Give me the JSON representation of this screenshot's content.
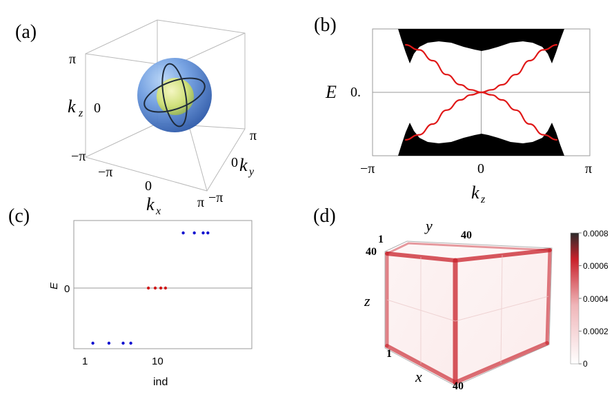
{
  "panels": {
    "a": {
      "label": "(a)",
      "axes": {
        "kz_label": "k",
        "kz_sub": "z",
        "ky_label": "k",
        "ky_sub": "y",
        "kx_label": "k",
        "kx_sub": "x",
        "kz_ticks": [
          "π",
          "0",
          "−π"
        ],
        "kx_ticks": [
          "−π",
          "0",
          "π"
        ],
        "ky_ticks": [
          "π",
          "0",
          "−π"
        ]
      },
      "colors": {
        "outer_sphere": "#4a78c8",
        "inner_sphere": "#c9e06a",
        "rings": "#1e2a3a"
      }
    },
    "b": {
      "label": "(b)",
      "ylabel": "E",
      "xlabel": "k",
      "xlabel_sub": "z",
      "y_tick": "0.",
      "x_ticks": [
        "−π",
        "0",
        "π"
      ],
      "colors": {
        "bulk": "#000000",
        "surface": "#e01818"
      }
    },
    "c": {
      "label": "(c)",
      "ylabel": "E",
      "xlabel": "ind",
      "y_tick": "0",
      "x_ticks": [
        "1",
        "10"
      ],
      "colors": {
        "bulk_points": "#1010d0",
        "zero_modes": "#d01818"
      }
    },
    "d": {
      "label": "(d)",
      "axes": {
        "y": "y",
        "z": "z",
        "x": "x"
      },
      "corner_ticks": {
        "top_left_1": "1",
        "top_right_40": "40",
        "left_40": "40",
        "bottom_1": "1",
        "bottom_40": "40"
      },
      "colorbar_ticks": [
        "0.0008",
        "0.0006",
        "0.0004",
        "0.0002",
        "0"
      ],
      "colors": {
        "edge": "#c8202a",
        "max": "#2a2a2a",
        "min": "#ffffff"
      }
    }
  },
  "chart_data": [
    {
      "type": "line",
      "panel": "b",
      "xlabel": "kz",
      "ylabel": "E",
      "xlim": [
        -3.14159,
        3.14159
      ],
      "x_ticks": [
        "−π",
        "0",
        "π"
      ],
      "y_ticks": [
        "0."
      ],
      "series": [
        {
          "x": [
            -2.2,
            -1.8,
            -1.4,
            -1.0,
            -0.6,
            -0.3,
            0,
            0.3,
            0.6,
            1.0,
            1.4,
            1.8,
            2.2
          ],
          "y": [
            0.75,
            0.67,
            0.5,
            0.28,
            0.12,
            0.04,
            0,
            -0.04,
            -0.12,
            -0.28,
            -0.5,
            -0.67,
            -0.75
          ]
        },
        {
          "x": [
            -2.2,
            -1.8,
            -1.4,
            -1.0,
            -0.6,
            -0.3,
            0,
            0.3,
            0.6,
            1.0,
            1.4,
            1.8,
            2.2
          ],
          "y": [
            -0.75,
            -0.67,
            -0.5,
            -0.28,
            -0.12,
            -0.04,
            0,
            0.04,
            0.12,
            0.28,
            0.5,
            0.67,
            0.75
          ]
        }
      ]
    },
    {
      "type": "scatter",
      "panel": "c",
      "xlabel": "ind",
      "ylabel": "E",
      "x_scale": "log",
      "x_ticks": [
        "1",
        "10"
      ],
      "y_ticks": [
        "0"
      ],
      "series": [
        {
          "x": [
            1.3,
            2.2,
            3.5,
            4.5
          ],
          "y": [
            -1,
            -1,
            -1,
            -1
          ]
        },
        {
          "x": [
            8,
            10,
            12,
            14
          ],
          "y": [
            0,
            0,
            0,
            0
          ]
        },
        {
          "x": [
            25,
            36,
            48,
            56
          ],
          "y": [
            1,
            1,
            1,
            1
          ]
        }
      ]
    }
  ]
}
